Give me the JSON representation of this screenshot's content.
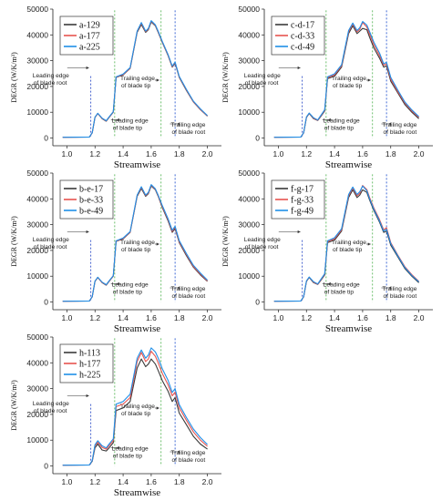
{
  "figure": {
    "colors": {
      "black": "#3a3a3a",
      "red": "#e8534f",
      "blue": "#1f8fe8",
      "root_line": "#3050c8",
      "tip_line": "#5cb85c",
      "trail_line": "#2c5ad0"
    }
  },
  "chart_data": [
    {
      "type": "line",
      "panel": "top-left",
      "xlabel": "Streamwise",
      "ylabel": "DEGR (W/K/m³)",
      "xlim": [
        0.9,
        2.1
      ],
      "ylim": [
        -3000,
        50000
      ],
      "xticks": [
        "1.0",
        "1.2",
        "1.4",
        "1.6",
        "1.8",
        "2.0"
      ],
      "yticks": [
        "0",
        "10000",
        "20000",
        "30000",
        "40000",
        "50000"
      ],
      "legend_position": "top-left",
      "x": [
        0.97,
        1.16,
        1.18,
        1.2,
        1.22,
        1.25,
        1.28,
        1.3,
        1.33,
        1.35,
        1.4,
        1.45,
        1.5,
        1.53,
        1.56,
        1.58,
        1.6,
        1.63,
        1.65,
        1.68,
        1.72,
        1.75,
        1.77,
        1.8,
        1.85,
        1.9,
        1.95,
        2.0
      ],
      "series": [
        {
          "name": "a-129",
          "values": [
            300,
            400,
            2000,
            8000,
            9500,
            7500,
            6500,
            8000,
            10000,
            23500,
            24500,
            27000,
            41000,
            44000,
            41000,
            42000,
            45000,
            43500,
            41000,
            37000,
            32000,
            27500,
            29000,
            23500,
            18500,
            14000,
            11000,
            8500
          ]
        },
        {
          "name": "a-177",
          "values": [
            300,
            400,
            2000,
            8000,
            9500,
            7600,
            6600,
            8100,
            10100,
            23600,
            24600,
            27100,
            41300,
            44500,
            41300,
            42300,
            45300,
            43700,
            41200,
            37200,
            32200,
            27700,
            29300,
            23700,
            18700,
            14100,
            11100,
            8600
          ]
        },
        {
          "name": "a-225",
          "values": [
            300,
            400,
            2100,
            8100,
            9600,
            7700,
            6700,
            8200,
            10200,
            23700,
            24800,
            27300,
            41500,
            44800,
            41500,
            42500,
            45500,
            43900,
            41400,
            37400,
            32400,
            27900,
            29500,
            23900,
            18900,
            14300,
            11300,
            8700
          ]
        }
      ],
      "annotations": [
        {
          "text": [
            "Leading edge",
            "of blade root"
          ],
          "x_line": 1.17
        },
        {
          "text": [
            "Leading edge",
            "of blade tip"
          ],
          "x_line": 1.34
        },
        {
          "text": [
            "Trailing edge",
            "of blade tip"
          ],
          "x_line": 1.67
        },
        {
          "text": [
            "Trailing edge",
            "of blade root"
          ],
          "x_line": 1.77
        }
      ]
    },
    {
      "type": "line",
      "panel": "top-right",
      "xlabel": "Streamwise",
      "ylabel": "DEGR (W/K/m³)",
      "xlim": [
        0.9,
        2.1
      ],
      "ylim": [
        -3000,
        50000
      ],
      "xticks": [
        "1.0",
        "1.2",
        "1.4",
        "1.6",
        "1.8",
        "2.0"
      ],
      "yticks": [
        "0",
        "10000",
        "20000",
        "30000",
        "40000",
        "50000"
      ],
      "legend_position": "top-left",
      "x": [
        0.97,
        1.16,
        1.18,
        1.2,
        1.22,
        1.25,
        1.28,
        1.3,
        1.33,
        1.35,
        1.4,
        1.45,
        1.5,
        1.53,
        1.56,
        1.58,
        1.6,
        1.63,
        1.65,
        1.68,
        1.72,
        1.75,
        1.77,
        1.8,
        1.85,
        1.9,
        1.95,
        2.0
      ],
      "series": [
        {
          "name": "c-d-17",
          "values": [
            300,
            400,
            2000,
            8000,
            9500,
            7500,
            6800,
            8200,
            10500,
            23000,
            24000,
            27500,
            40500,
            43500,
            40500,
            41500,
            42500,
            42000,
            39000,
            35000,
            31000,
            27500,
            28000,
            22000,
            17500,
            13000,
            10000,
            7500
          ]
        },
        {
          "name": "c-d-33",
          "values": [
            300,
            400,
            2000,
            8100,
            9600,
            7700,
            6900,
            8400,
            10800,
            23400,
            24500,
            28000,
            41200,
            44200,
            41200,
            42200,
            44800,
            43000,
            40200,
            36200,
            32000,
            28200,
            28800,
            22800,
            18000,
            13600,
            10500,
            8000
          ]
        },
        {
          "name": "c-d-49",
          "values": [
            300,
            400,
            2100,
            8200,
            9700,
            7900,
            7000,
            8600,
            11000,
            23700,
            24900,
            28400,
            41700,
            44600,
            41700,
            42800,
            45200,
            43800,
            41200,
            37200,
            33000,
            28800,
            29400,
            23500,
            18600,
            14000,
            10900,
            8300
          ]
        }
      ],
      "annotations": [
        {
          "text": [
            "Leading edge",
            "of blade root"
          ],
          "x_line": 1.17
        },
        {
          "text": [
            "Leading edge",
            "of blade tip"
          ],
          "x_line": 1.34
        },
        {
          "text": [
            "Trailing edge",
            "of blade tip"
          ],
          "x_line": 1.67
        },
        {
          "text": [
            "Trailing edge",
            "of blade root"
          ],
          "x_line": 1.77
        }
      ]
    },
    {
      "type": "line",
      "panel": "middle-left",
      "xlabel": "Streamwise",
      "ylabel": "DEGR (W/K/m³)",
      "xlim": [
        0.9,
        2.1
      ],
      "ylim": [
        -3000,
        50000
      ],
      "xticks": [
        "1.0",
        "1.2",
        "1.4",
        "1.6",
        "1.8",
        "2.0"
      ],
      "yticks": [
        "0",
        "10000",
        "20000",
        "30000",
        "40000",
        "50000"
      ],
      "legend_position": "top-left",
      "x": [
        0.97,
        1.16,
        1.18,
        1.2,
        1.22,
        1.25,
        1.28,
        1.3,
        1.33,
        1.35,
        1.4,
        1.45,
        1.5,
        1.53,
        1.56,
        1.58,
        1.6,
        1.63,
        1.65,
        1.68,
        1.72,
        1.75,
        1.77,
        1.8,
        1.85,
        1.9,
        1.95,
        2.0
      ],
      "series": [
        {
          "name": "b-e-17",
          "values": [
            300,
            400,
            2000,
            8000,
            9500,
            7500,
            6500,
            8000,
            10000,
            23500,
            24500,
            27000,
            41000,
            44000,
            41000,
            42000,
            45000,
            43500,
            41000,
            36500,
            31500,
            27000,
            28500,
            23000,
            18000,
            13500,
            10500,
            8000
          ]
        },
        {
          "name": "b-e-33",
          "values": [
            300,
            400,
            2000,
            8000,
            9500,
            7600,
            6600,
            8100,
            10100,
            23600,
            24600,
            27100,
            41300,
            44400,
            41300,
            42300,
            45300,
            43700,
            41200,
            36900,
            31900,
            27400,
            29000,
            23400,
            18400,
            13800,
            10800,
            8200
          ]
        },
        {
          "name": "b-e-49",
          "values": [
            300,
            400,
            2100,
            8100,
            9600,
            7700,
            6700,
            8200,
            10200,
            23700,
            24800,
            27300,
            41500,
            44700,
            41500,
            42500,
            45500,
            43900,
            41400,
            37300,
            32300,
            27800,
            29400,
            23800,
            18800,
            14200,
            11200,
            8500
          ]
        }
      ],
      "annotations": [
        {
          "text": [
            "Leading edge",
            "of blade root"
          ],
          "x_line": 1.17
        },
        {
          "text": [
            "Leading edge",
            "of blade tip"
          ],
          "x_line": 1.34
        },
        {
          "text": [
            "Trailing edge",
            "of blade tip"
          ],
          "x_line": 1.67
        },
        {
          "text": [
            "Trailing edge",
            "of blade root"
          ],
          "x_line": 1.77
        }
      ]
    },
    {
      "type": "line",
      "panel": "middle-right",
      "xlabel": "Streamwise",
      "ylabel": "DEGR (W/K/m³)",
      "xlim": [
        0.9,
        2.1
      ],
      "ylim": [
        -3000,
        50000
      ],
      "xticks": [
        "1.0",
        "1.2",
        "1.4",
        "1.6",
        "1.8",
        "2.0"
      ],
      "yticks": [
        "0",
        "10000",
        "20000",
        "30000",
        "40000",
        "50000"
      ],
      "legend_position": "top-left",
      "x": [
        0.97,
        1.16,
        1.18,
        1.2,
        1.22,
        1.25,
        1.28,
        1.3,
        1.33,
        1.35,
        1.4,
        1.45,
        1.5,
        1.53,
        1.56,
        1.58,
        1.6,
        1.63,
        1.65,
        1.68,
        1.72,
        1.75,
        1.77,
        1.8,
        1.85,
        1.9,
        1.95,
        2.0
      ],
      "series": [
        {
          "name": "f-g-17",
          "values": [
            300,
            400,
            2000,
            8000,
            9500,
            7500,
            6800,
            8200,
            10500,
            23000,
            24000,
            27500,
            40500,
            43500,
            40500,
            41500,
            43500,
            42500,
            39500,
            35500,
            31000,
            27000,
            27500,
            22000,
            17500,
            13000,
            10000,
            7500
          ]
        },
        {
          "name": "f-g-33",
          "values": [
            300,
            400,
            2000,
            8100,
            9600,
            7700,
            6900,
            8400,
            10800,
            23400,
            24500,
            28000,
            41200,
            44200,
            41200,
            42200,
            45200,
            43600,
            40500,
            36500,
            32000,
            28000,
            28800,
            23000,
            18200,
            13700,
            10600,
            8000
          ]
        },
        {
          "name": "f-g-49",
          "values": [
            300,
            400,
            2100,
            8200,
            9700,
            7900,
            7000,
            8600,
            11000,
            23700,
            24900,
            28400,
            41700,
            44600,
            41700,
            42800,
            45000,
            43200,
            40000,
            36000,
            31500,
            27500,
            28200,
            22600,
            17900,
            13400,
            10300,
            7800
          ]
        }
      ],
      "annotations": [
        {
          "text": [
            "Leading edge",
            "of blade root"
          ],
          "x_line": 1.17
        },
        {
          "text": [
            "Leading edge",
            "of blade tip"
          ],
          "x_line": 1.34
        },
        {
          "text": [
            "Trailing edge",
            "of blade tip"
          ],
          "x_line": 1.67
        },
        {
          "text": [
            "Trailing edge",
            "of blade root"
          ],
          "x_line": 1.77
        }
      ]
    },
    {
      "type": "line",
      "panel": "bottom-left",
      "xlabel": "Streamwise",
      "ylabel": "DEGR (W/K/m³)",
      "xlim": [
        0.9,
        2.1
      ],
      "ylim": [
        -3000,
        50000
      ],
      "xticks": [
        "1.0",
        "1.2",
        "1.4",
        "1.6",
        "1.8",
        "2.0"
      ],
      "yticks": [
        "0",
        "10000",
        "20000",
        "30000",
        "40000",
        "50000"
      ],
      "legend_position": "top-left",
      "x": [
        0.97,
        1.16,
        1.18,
        1.2,
        1.22,
        1.25,
        1.28,
        1.3,
        1.33,
        1.35,
        1.4,
        1.45,
        1.5,
        1.53,
        1.56,
        1.58,
        1.6,
        1.63,
        1.65,
        1.68,
        1.72,
        1.75,
        1.77,
        1.8,
        1.85,
        1.9,
        1.95,
        2.0
      ],
      "series": [
        {
          "name": "h-113",
          "values": [
            300,
            400,
            1800,
            7000,
            8500,
            6200,
            5800,
            7000,
            9000,
            21500,
            22500,
            25000,
            38000,
            41500,
            38500,
            39500,
            41500,
            39500,
            37000,
            33000,
            29000,
            25000,
            26500,
            20500,
            16000,
            11500,
            8500,
            6500
          ]
        },
        {
          "name": "h-177",
          "values": [
            300,
            400,
            2000,
            7800,
            9200,
            7200,
            6500,
            7900,
            9800,
            23000,
            24000,
            26500,
            40500,
            44000,
            40500,
            41500,
            44500,
            42500,
            40000,
            35800,
            31500,
            27200,
            28600,
            22500,
            17700,
            13200,
            10000,
            7600
          ]
        },
        {
          "name": "h-225",
          "values": [
            300,
            400,
            2100,
            8200,
            9800,
            7800,
            7000,
            8500,
            10500,
            24000,
            25000,
            27800,
            41800,
            45000,
            41800,
            43000,
            45800,
            44200,
            41800,
            37600,
            33200,
            28500,
            30000,
            23800,
            18800,
            14300,
            11000,
            8300
          ]
        }
      ],
      "annotations": [
        {
          "text": [
            "Leading edge",
            "of blade root"
          ],
          "x_line": 1.17
        },
        {
          "text": [
            "Leading edge",
            "of blade tip"
          ],
          "x_line": 1.34
        },
        {
          "text": [
            "Trailing edge",
            "of blade tip"
          ],
          "x_line": 1.67
        },
        {
          "text": [
            "Trailing edge",
            "of blade root"
          ],
          "x_line": 1.77
        }
      ]
    }
  ]
}
